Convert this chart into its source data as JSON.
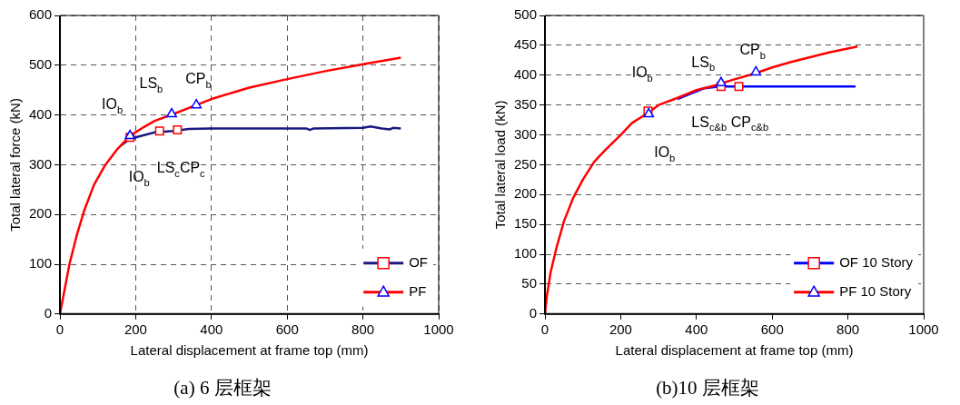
{
  "chart_data": [
    {
      "type": "line",
      "title": "(a) 6 层框架",
      "xlabel": "Lateral displacement at frame top (mm)",
      "ylabel": "Total lateral force (kN)",
      "xlim": [
        0,
        1000
      ],
      "xticks": [
        0,
        200,
        400,
        600,
        800,
        1000
      ],
      "ylim": [
        0,
        600
      ],
      "yticks": [
        0,
        100,
        200,
        300,
        400,
        500,
        600
      ],
      "grid": true,
      "legend": "bottom right",
      "series": [
        {
          "name": "OF",
          "color": "#1a1a80",
          "x": [
            160,
            185,
            200,
            250,
            300,
            340,
            400,
            650,
            660,
            670,
            800,
            820,
            850,
            870,
            880,
            900
          ],
          "values": [
            338,
            352,
            355,
            365,
            368,
            372,
            373,
            373,
            370,
            373,
            374,
            377,
            373,
            371,
            374,
            373
          ]
        },
        {
          "type": "scatter",
          "marker": "square",
          "color": "#ff0000",
          "x": [
            185,
            263,
            310
          ],
          "values": [
            355,
            368,
            370
          ]
        },
        {
          "name": "PF",
          "color": "#ff0000",
          "x": [
            0,
            10,
            25,
            45,
            65,
            90,
            120,
            150,
            185,
            220,
            250,
            300,
            360,
            400,
            500,
            600,
            700,
            800,
            900
          ],
          "values": [
            0,
            40,
            100,
            160,
            210,
            260,
            300,
            330,
            358,
            375,
            388,
            402,
            420,
            432,
            455,
            472,
            488,
            502,
            515
          ]
        },
        {
          "type": "scatter",
          "marker": "triangle",
          "color": "#0000ff",
          "x": [
            185,
            295,
            360
          ],
          "values": [
            358,
            402,
            420
          ]
        }
      ],
      "annotations": [
        {
          "text": "IO$_{b}$",
          "x": 185,
          "y": 358
        },
        {
          "text": "LS$_{b}$",
          "x": 295,
          "y": 402
        },
        {
          "text": "CP$_{b}$",
          "x": 360,
          "y": 420
        },
        {
          "text": "IO$_{b}$",
          "x": 185,
          "y": 355
        },
        {
          "text": "LS$_{c}$CP$_{c}$",
          "x": 263,
          "y": 368
        }
      ]
    },
    {
      "type": "line",
      "title": "(b)10 层框架",
      "xlabel": "Lateral displacement at frame top (mm)",
      "ylabel": "Total lateral load (kN)",
      "xlim": [
        0,
        1000
      ],
      "xticks": [
        0,
        200,
        400,
        600,
        800,
        1000
      ],
      "ylim": [
        0,
        500
      ],
      "yticks": [
        0,
        50,
        100,
        150,
        200,
        250,
        300,
        350,
        400,
        450,
        500
      ],
      "grid": "y",
      "legend": "bottom right",
      "series": [
        {
          "name": "OF 10 Story",
          "color": "#0000ff",
          "x": [
            350,
            400,
            420,
            460,
            820
          ],
          "values": [
            360,
            373,
            378,
            381,
            381
          ]
        },
        {
          "type": "scatter",
          "marker": "square",
          "color": "#ff0000",
          "x": [
            272,
            465,
            512
          ],
          "values": [
            340,
            381,
            381
          ]
        },
        {
          "name": "PF 10 Story",
          "color": "#ff0000",
          "x": [
            0,
            5,
            15,
            30,
            50,
            75,
            100,
            130,
            160,
            200,
            230,
            260,
            275,
            300,
            350,
            400,
            450,
            500,
            550,
            600,
            650,
            700,
            750,
            825
          ],
          "values": [
            0,
            30,
            70,
            110,
            155,
            195,
            225,
            255,
            275,
            300,
            320,
            332,
            338,
            350,
            362,
            375,
            383,
            393,
            402,
            413,
            422,
            430,
            438,
            448
          ]
        },
        {
          "type": "scatter",
          "marker": "triangle",
          "color": "#0000ff",
          "x": [
            274,
            465,
            557
          ],
          "values": [
            335,
            387,
            405
          ]
        }
      ],
      "annotations": [
        {
          "text": "IO$_{b}$",
          "x": 272,
          "y": 340
        },
        {
          "text": "LS$_{b}$",
          "x": 465,
          "y": 387
        },
        {
          "text": "CP$_{b}$",
          "x": 557,
          "y": 405
        },
        {
          "text": "LS$_{c&b}$ CP$_{c&b}$",
          "x": 465,
          "y": 381
        },
        {
          "text": "IO$_{b}$",
          "x": 274,
          "y": 335
        }
      ]
    }
  ]
}
